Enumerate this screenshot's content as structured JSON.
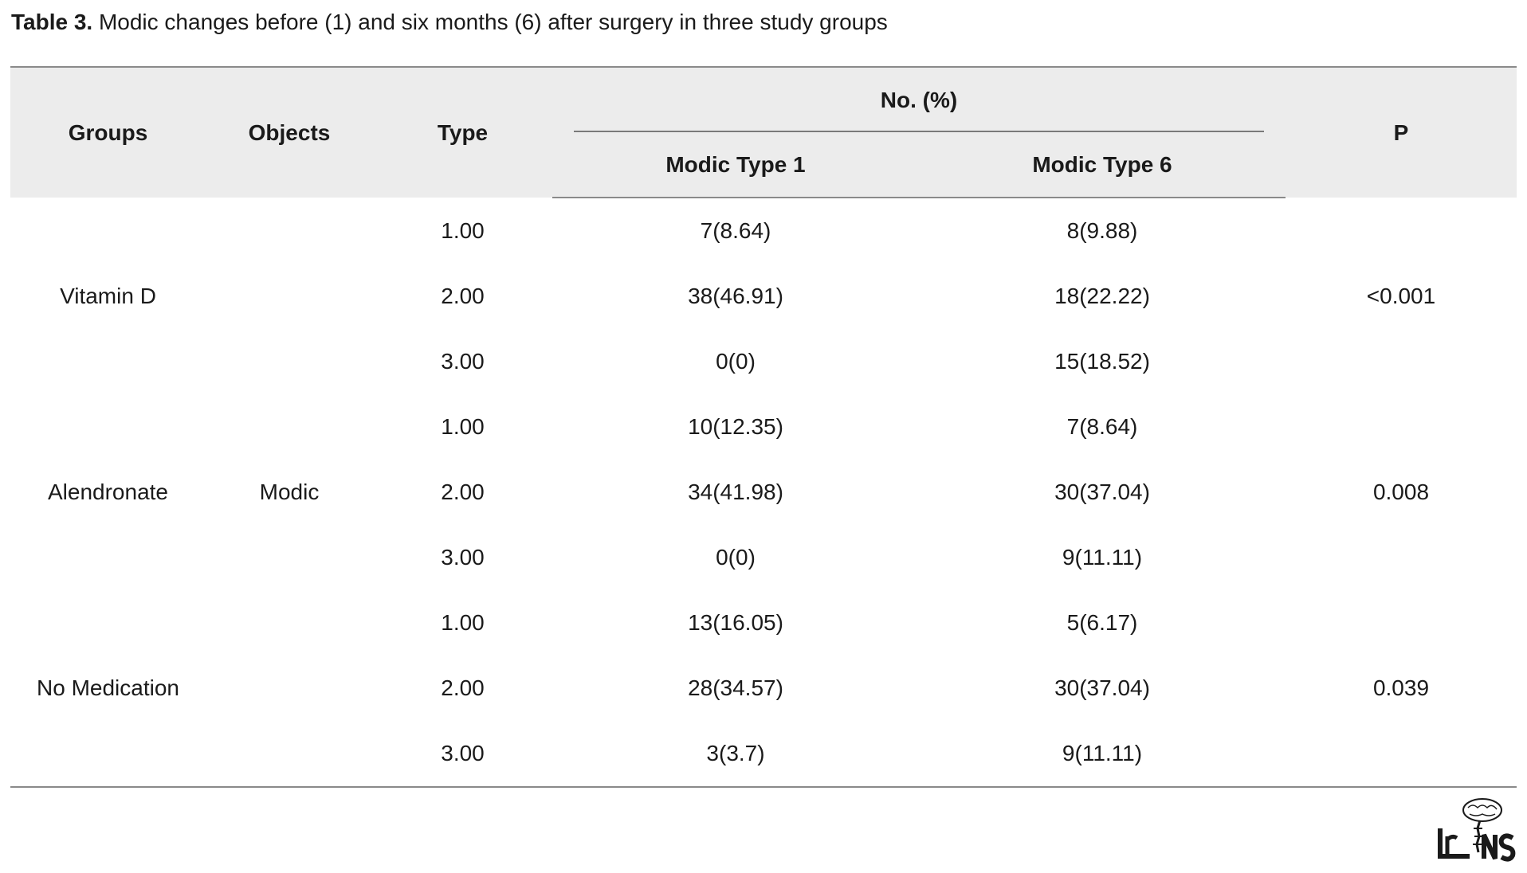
{
  "caption": {
    "label": "Table 3.",
    "text": " Modic changes before (1) and six months (6) after surgery in three study groups"
  },
  "table": {
    "headers": {
      "groups": "Groups",
      "objects": "Objects",
      "type": "Type",
      "no_percent": "No. (%)",
      "modic_type_1": "Modic Type 1",
      "modic_type_6": "Modic Type 6",
      "p": "P"
    },
    "objects_value": "Modic",
    "groups": [
      {
        "name": "Vitamin D",
        "p": "<0.001",
        "rows": [
          {
            "type": "1.00",
            "modic1": "7(8.64)",
            "modic6": "8(9.88)"
          },
          {
            "type": "2.00",
            "modic1": "38(46.91)",
            "modic6": "18(22.22)"
          },
          {
            "type": "3.00",
            "modic1": "0(0)",
            "modic6": "15(18.52)"
          }
        ]
      },
      {
        "name": "Alendronate",
        "p": "0.008",
        "rows": [
          {
            "type": "1.00",
            "modic1": "10(12.35)",
            "modic6": "7(8.64)"
          },
          {
            "type": "2.00",
            "modic1": "34(41.98)",
            "modic6": "30(37.04)"
          },
          {
            "type": "3.00",
            "modic1": "0(0)",
            "modic6": "9(11.11)"
          }
        ]
      },
      {
        "name": "No Medication",
        "p": "0.039",
        "rows": [
          {
            "type": "1.00",
            "modic1": "13(16.05)",
            "modic6": "5(6.17)"
          },
          {
            "type": "2.00",
            "modic1": "28(34.57)",
            "modic6": "30(37.04)"
          },
          {
            "type": "3.00",
            "modic1": "3(3.7)",
            "modic6": "9(11.11)"
          }
        ]
      }
    ]
  },
  "logo": {
    "text": "IrJNS",
    "icon": "brain-spine-logo-icon"
  }
}
